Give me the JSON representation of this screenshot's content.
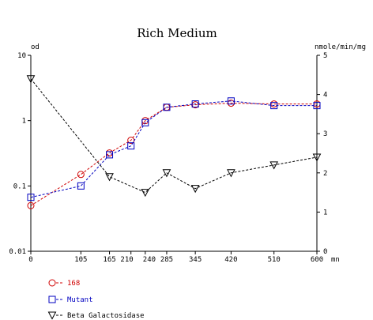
{
  "chart_data": {
    "type": "line",
    "title": "Rich Medium",
    "y_left_label": "od",
    "y_right_label": "nmole/min/mg",
    "x_unit_label": "mn",
    "x_ticks": [
      0,
      105,
      165,
      210,
      240,
      285,
      345,
      420,
      510,
      600
    ],
    "x_tick_labels": [
      "0",
      "105",
      "165",
      "210",
      "240",
      "285",
      "345",
      "420",
      "510",
      "600"
    ],
    "xlim": [
      0,
      600
    ],
    "y_left_scale": "log",
    "y_left_lim": [
      0.01,
      10
    ],
    "y_left_ticks": [
      0.01,
      0.1,
      1,
      10
    ],
    "y_left_tick_labels": [
      "0.01",
      "0.1",
      "1",
      "10"
    ],
    "y_right_lim": [
      0,
      5
    ],
    "y_right_ticks": [
      0,
      1,
      2,
      3,
      4,
      5
    ],
    "y_right_tick_labels": [
      "0",
      "1",
      "2",
      "3",
      "4",
      "5"
    ],
    "grid": false,
    "legend_position": "bottom-left",
    "series": [
      {
        "name": "168",
        "axis": "left",
        "color": "#d00000",
        "marker": "circle",
        "x": [
          0,
          105,
          165,
          210,
          240,
          285,
          345,
          420,
          510,
          600
        ],
        "y": [
          0.05,
          0.15,
          0.32,
          0.5,
          1.0,
          1.6,
          1.75,
          1.85,
          1.8,
          1.8
        ]
      },
      {
        "name": "Mutant",
        "axis": "left",
        "color": "#0000c0",
        "marker": "square",
        "x": [
          0,
          105,
          165,
          210,
          240,
          285,
          345,
          420,
          510,
          600
        ],
        "y": [
          0.067,
          0.1,
          0.3,
          0.41,
          0.93,
          1.6,
          1.8,
          2.0,
          1.7,
          1.7
        ]
      },
      {
        "name": "Beta Galactosidase",
        "axis": "right",
        "color": "#000000",
        "marker": "triangle-down",
        "x": [
          0,
          165,
          240,
          285,
          345,
          420,
          510,
          600
        ],
        "y": [
          4.4,
          1.9,
          1.5,
          2.0,
          1.6,
          2.0,
          2.2,
          2.4
        ]
      }
    ]
  }
}
